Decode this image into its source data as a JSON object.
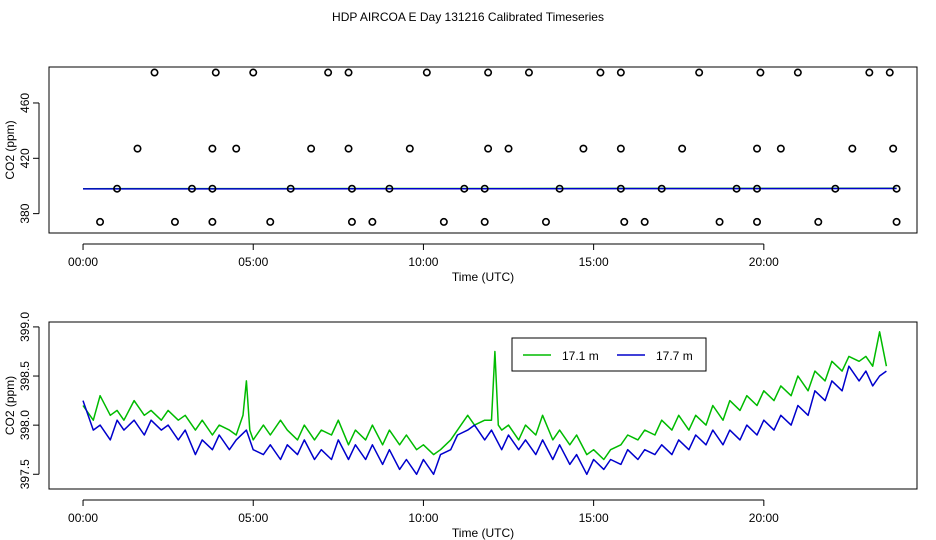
{
  "title": "HDP AIRCOA E  Day 131216  Calibrated Timeseries",
  "chart_data": [
    {
      "type": "scatter",
      "xlabel": "Time (UTC)",
      "ylabel": "CO2 (ppm)",
      "xlim": [
        -1.0,
        24.5
      ],
      "ylim": [
        366,
        486
      ],
      "xticks": [
        {
          "v": 0,
          "label": "00:00"
        },
        {
          "v": 5,
          "label": "05:00"
        },
        {
          "v": 10,
          "label": "10:00"
        },
        {
          "v": 15,
          "label": "15:00"
        },
        {
          "v": 20,
          "label": "20:00"
        }
      ],
      "yticks": [
        {
          "v": 380,
          "label": "380"
        },
        {
          "v": 420,
          "label": "420"
        },
        {
          "v": 460,
          "label": "460"
        }
      ],
      "reference_points": [
        {
          "x": 2.1,
          "y": 482
        },
        {
          "x": 3.9,
          "y": 482
        },
        {
          "x": 5.0,
          "y": 482
        },
        {
          "x": 7.2,
          "y": 482
        },
        {
          "x": 7.8,
          "y": 482
        },
        {
          "x": 10.1,
          "y": 482
        },
        {
          "x": 11.9,
          "y": 482
        },
        {
          "x": 13.1,
          "y": 482
        },
        {
          "x": 15.2,
          "y": 482
        },
        {
          "x": 15.8,
          "y": 482
        },
        {
          "x": 18.1,
          "y": 482
        },
        {
          "x": 19.9,
          "y": 482
        },
        {
          "x": 21.0,
          "y": 482
        },
        {
          "x": 23.1,
          "y": 482
        },
        {
          "x": 23.7,
          "y": 482
        },
        {
          "x": 1.6,
          "y": 427
        },
        {
          "x": 3.8,
          "y": 427
        },
        {
          "x": 4.5,
          "y": 427
        },
        {
          "x": 6.7,
          "y": 427
        },
        {
          "x": 7.8,
          "y": 427
        },
        {
          "x": 9.6,
          "y": 427
        },
        {
          "x": 11.9,
          "y": 427
        },
        {
          "x": 12.5,
          "y": 427
        },
        {
          "x": 14.7,
          "y": 427
        },
        {
          "x": 15.8,
          "y": 427
        },
        {
          "x": 17.6,
          "y": 427
        },
        {
          "x": 19.8,
          "y": 427
        },
        {
          "x": 20.5,
          "y": 427
        },
        {
          "x": 22.6,
          "y": 427
        },
        {
          "x": 23.8,
          "y": 427
        },
        {
          "x": 1.0,
          "y": 398
        },
        {
          "x": 3.2,
          "y": 398
        },
        {
          "x": 3.8,
          "y": 398
        },
        {
          "x": 6.1,
          "y": 398
        },
        {
          "x": 7.9,
          "y": 398
        },
        {
          "x": 9.0,
          "y": 398
        },
        {
          "x": 11.2,
          "y": 398
        },
        {
          "x": 11.8,
          "y": 398
        },
        {
          "x": 14.0,
          "y": 398
        },
        {
          "x": 15.8,
          "y": 398
        },
        {
          "x": 17.0,
          "y": 398
        },
        {
          "x": 19.2,
          "y": 398
        },
        {
          "x": 19.8,
          "y": 398
        },
        {
          "x": 22.1,
          "y": 398
        },
        {
          "x": 23.9,
          "y": 398
        },
        {
          "x": 0.5,
          "y": 374
        },
        {
          "x": 2.7,
          "y": 374
        },
        {
          "x": 3.8,
          "y": 374
        },
        {
          "x": 5.5,
          "y": 374
        },
        {
          "x": 7.9,
          "y": 374
        },
        {
          "x": 8.5,
          "y": 374
        },
        {
          "x": 10.6,
          "y": 374
        },
        {
          "x": 11.8,
          "y": 374
        },
        {
          "x": 13.6,
          "y": 374
        },
        {
          "x": 15.9,
          "y": 374
        },
        {
          "x": 16.5,
          "y": 374
        },
        {
          "x": 18.7,
          "y": 374
        },
        {
          "x": 19.8,
          "y": 374
        },
        {
          "x": 21.6,
          "y": 374
        },
        {
          "x": 23.9,
          "y": 374
        }
      ],
      "series": [
        {
          "color": "#00bb00",
          "x": [
            0.0,
            23.9
          ],
          "values": [
            398.0,
            398.3
          ]
        },
        {
          "color": "#0000cc",
          "x": [
            0.0,
            23.9
          ],
          "values": [
            397.9,
            398.2
          ]
        }
      ]
    },
    {
      "type": "line",
      "xlabel": "Time (UTC)",
      "ylabel": "CO2 (ppm)",
      "xlim": [
        -1.0,
        24.5
      ],
      "ylim": [
        397.35,
        399.05
      ],
      "xticks": [
        {
          "v": 0,
          "label": "00:00"
        },
        {
          "v": 5,
          "label": "05:00"
        },
        {
          "v": 10,
          "label": "10:00"
        },
        {
          "v": 15,
          "label": "15:00"
        },
        {
          "v": 20,
          "label": "20:00"
        }
      ],
      "yticks": [
        {
          "v": 397.5,
          "label": "397.5"
        },
        {
          "v": 398.0,
          "label": "398.0"
        },
        {
          "v": 398.5,
          "label": "398.5"
        },
        {
          "v": 399.0,
          "label": "399.0"
        }
      ],
      "legend_position": "top-right",
      "series": [
        {
          "name": "17.1 m",
          "color": "#00bb00",
          "x": [
            0.0,
            0.3,
            0.5,
            0.8,
            1.0,
            1.2,
            1.5,
            1.8,
            2.0,
            2.3,
            2.5,
            2.8,
            3.0,
            3.3,
            3.5,
            3.8,
            4.0,
            4.3,
            4.5,
            4.7,
            4.8,
            4.9,
            5.0,
            5.3,
            5.5,
            5.8,
            6.0,
            6.3,
            6.5,
            6.8,
            7.0,
            7.3,
            7.5,
            7.8,
            8.0,
            8.3,
            8.5,
            8.8,
            9.0,
            9.3,
            9.5,
            9.8,
            10.0,
            10.3,
            10.5,
            10.8,
            11.0,
            11.3,
            11.5,
            11.8,
            12.0,
            12.1,
            12.2,
            12.3,
            12.5,
            12.8,
            13.0,
            13.3,
            13.5,
            13.8,
            14.0,
            14.3,
            14.5,
            14.8,
            15.0,
            15.3,
            15.5,
            15.8,
            16.0,
            16.3,
            16.5,
            16.8,
            17.0,
            17.3,
            17.5,
            17.8,
            18.0,
            18.3,
            18.5,
            18.8,
            19.0,
            19.3,
            19.5,
            19.8,
            20.0,
            20.3,
            20.5,
            20.8,
            21.0,
            21.3,
            21.5,
            21.8,
            22.0,
            22.3,
            22.5,
            22.8,
            23.0,
            23.2,
            23.4,
            23.6
          ],
          "values": [
            398.2,
            398.05,
            398.3,
            398.1,
            398.15,
            398.05,
            398.25,
            398.1,
            398.15,
            398.05,
            398.15,
            398.05,
            398.1,
            397.95,
            398.05,
            397.9,
            398.0,
            397.95,
            397.9,
            398.1,
            398.45,
            397.95,
            397.85,
            398.0,
            397.9,
            398.05,
            397.95,
            397.85,
            398.0,
            397.85,
            397.95,
            397.9,
            398.05,
            397.8,
            397.95,
            397.85,
            398.0,
            397.8,
            397.95,
            397.8,
            397.9,
            397.75,
            397.8,
            397.7,
            397.75,
            397.85,
            397.95,
            398.1,
            398.0,
            398.05,
            398.05,
            398.75,
            398.0,
            397.95,
            398.0,
            397.85,
            398.0,
            397.9,
            398.1,
            397.85,
            397.95,
            397.8,
            397.9,
            397.7,
            397.75,
            397.65,
            397.75,
            397.8,
            397.9,
            397.85,
            397.95,
            397.9,
            398.05,
            397.95,
            398.1,
            397.95,
            398.1,
            398.0,
            398.2,
            398.05,
            398.25,
            398.15,
            398.3,
            398.2,
            398.35,
            398.25,
            398.4,
            398.3,
            398.5,
            398.35,
            398.55,
            398.45,
            398.65,
            398.55,
            398.7,
            398.65,
            398.7,
            398.6,
            398.95,
            398.6
          ]
        },
        {
          "name": "17.7 m",
          "color": "#0000cc",
          "x": [
            0.0,
            0.3,
            0.5,
            0.8,
            1.0,
            1.2,
            1.5,
            1.8,
            2.0,
            2.3,
            2.5,
            2.8,
            3.0,
            3.3,
            3.5,
            3.8,
            4.0,
            4.3,
            4.5,
            4.8,
            5.0,
            5.3,
            5.5,
            5.8,
            6.0,
            6.3,
            6.5,
            6.8,
            7.0,
            7.3,
            7.5,
            7.8,
            8.0,
            8.3,
            8.5,
            8.8,
            9.0,
            9.3,
            9.5,
            9.8,
            10.0,
            10.3,
            10.5,
            10.8,
            11.0,
            11.3,
            11.5,
            11.8,
            12.0,
            12.3,
            12.5,
            12.8,
            13.0,
            13.3,
            13.5,
            13.8,
            14.0,
            14.3,
            14.5,
            14.8,
            15.0,
            15.3,
            15.5,
            15.8,
            16.0,
            16.3,
            16.5,
            16.8,
            17.0,
            17.3,
            17.5,
            17.8,
            18.0,
            18.3,
            18.5,
            18.8,
            19.0,
            19.3,
            19.5,
            19.8,
            20.0,
            20.3,
            20.5,
            20.8,
            21.0,
            21.3,
            21.5,
            21.8,
            22.0,
            22.3,
            22.5,
            22.8,
            23.0,
            23.2,
            23.4,
            23.6
          ],
          "values": [
            398.25,
            397.95,
            398.0,
            397.85,
            398.05,
            397.95,
            398.05,
            397.9,
            398.05,
            397.95,
            398.0,
            397.85,
            397.95,
            397.7,
            397.85,
            397.75,
            397.9,
            397.75,
            397.85,
            397.95,
            397.75,
            397.7,
            397.8,
            397.65,
            397.8,
            397.7,
            397.85,
            397.65,
            397.75,
            397.65,
            397.85,
            397.65,
            397.8,
            397.65,
            397.8,
            397.6,
            397.75,
            397.55,
            397.65,
            397.5,
            397.65,
            397.5,
            397.7,
            397.75,
            397.9,
            397.95,
            398.0,
            397.85,
            397.95,
            397.75,
            397.9,
            397.75,
            397.85,
            397.7,
            397.85,
            397.65,
            397.8,
            397.6,
            397.7,
            397.5,
            397.65,
            397.55,
            397.65,
            397.6,
            397.75,
            397.65,
            397.75,
            397.7,
            397.8,
            397.7,
            397.85,
            397.75,
            397.9,
            397.8,
            397.95,
            397.8,
            397.95,
            397.85,
            398.0,
            397.9,
            398.05,
            397.95,
            398.1,
            398.0,
            398.2,
            398.1,
            398.35,
            398.25,
            398.45,
            398.35,
            398.6,
            398.45,
            398.55,
            398.4,
            398.5,
            398.55
          ]
        }
      ]
    }
  ]
}
